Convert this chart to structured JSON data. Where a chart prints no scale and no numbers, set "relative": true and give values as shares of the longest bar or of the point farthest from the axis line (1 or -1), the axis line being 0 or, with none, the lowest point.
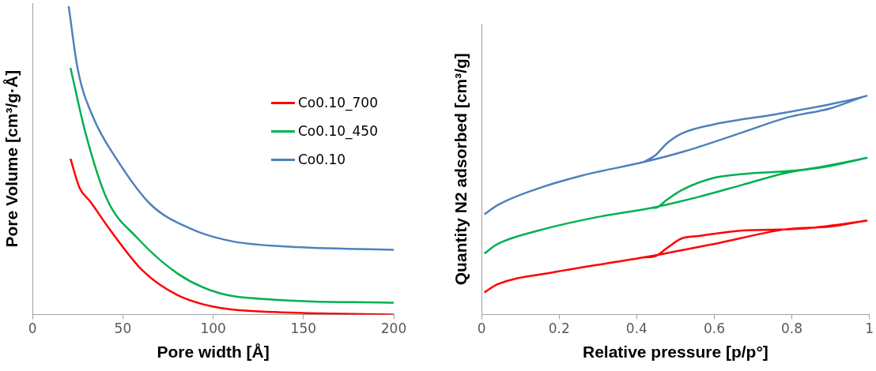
{
  "chart_data": [
    {
      "type": "line",
      "xlabel": "Pore width [Å]",
      "ylabel": "Pore Volume [cm³/g·Å]",
      "relative": true,
      "xlim": [
        0,
        200
      ],
      "xticks": [
        0,
        50,
        100,
        150,
        200
      ],
      "marker": "none",
      "legend": "top right",
      "series": [
        {
          "name": "Co0.10_700",
          "color": "#ff0000",
          "x": [
            21,
            26,
            32,
            42.6,
            61,
            80.5,
            103,
            134,
            200
          ],
          "values": [
            0.505,
            0.411,
            0.366,
            0.277,
            0.142,
            0.062,
            0.022,
            0.008,
            0.0
          ]
        },
        {
          "name": "Co0.10_450",
          "color": "#00b050",
          "x": [
            21,
            29.3,
            41.2,
            57.7,
            80.5,
            103,
            134,
            200
          ],
          "values": [
            0.8,
            0.589,
            0.374,
            0.25,
            0.132,
            0.07,
            0.048,
            0.038
          ]
        },
        {
          "name": "Co0.10",
          "color": "#4f81bd",
          "x": [
            20,
            25,
            33.4,
            47,
            65.4,
            88,
            111,
            142,
            200
          ],
          "values": [
            1.0,
            0.796,
            0.642,
            0.5,
            0.357,
            0.277,
            0.237,
            0.22,
            0.21
          ]
        }
      ]
    },
    {
      "type": "line",
      "xlabel": "Relative pressure [p/p°]",
      "ylabel": "Quantity N2 adsorbed [cm³/g]",
      "relative": true,
      "xlim": [
        0,
        1
      ],
      "xticks": [
        0,
        0.2,
        0.4,
        0.6,
        0.8,
        1
      ],
      "marker": "none",
      "series": [
        {
          "color": "#ff0000",
          "x": [
            0.007,
            0.041,
            0.184,
            0.418,
            0.598,
            0.786,
            0.9,
            0.993,
            0.824,
            0.673,
            0.56,
            0.515,
            0.478,
            0.448,
            0.418
          ],
          "values": [
            0.101,
            0.138,
            0.193,
            0.261,
            0.322,
            0.39,
            0.402,
            0.429,
            0.392,
            0.384,
            0.359,
            0.347,
            0.304,
            0.267,
            0.261
          ]
        },
        {
          "color": "#00b050",
          "x": [
            0.007,
            0.041,
            0.147,
            0.297,
            0.44,
            0.56,
            0.673,
            0.786,
            0.9,
            0.993,
            0.824,
            0.673,
            0.598,
            0.515,
            0.478,
            0.448,
            0.44
          ],
          "values": [
            0.279,
            0.322,
            0.384,
            0.445,
            0.488,
            0.538,
            0.593,
            0.648,
            0.679,
            0.716,
            0.661,
            0.642,
            0.624,
            0.568,
            0.525,
            0.488,
            0.488
          ]
        },
        {
          "color": "#4f81bd",
          "x": [
            0.007,
            0.041,
            0.132,
            0.26,
            0.418,
            0.523,
            0.673,
            0.786,
            0.9,
            0.993,
            0.9,
            0.749,
            0.598,
            0.515,
            0.478,
            0.448,
            0.418
          ],
          "values": [
            0.458,
            0.5,
            0.568,
            0.636,
            0.697,
            0.746,
            0.833,
            0.9,
            0.943,
            1.0,
            0.962,
            0.913,
            0.869,
            0.827,
            0.783,
            0.728,
            0.697
          ]
        }
      ]
    }
  ]
}
